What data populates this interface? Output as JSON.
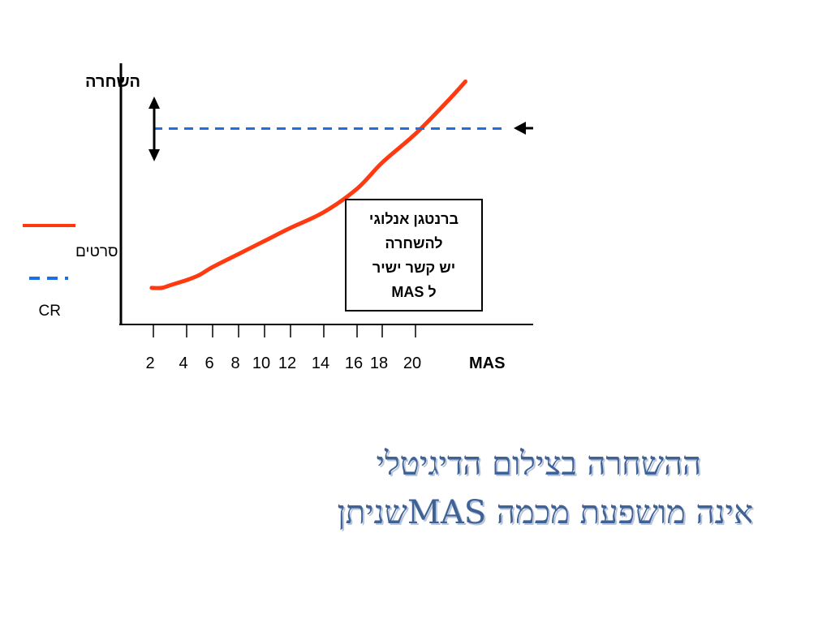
{
  "slide": {
    "title_line1": "ההשחרה בצילום הדיגיטלי",
    "title_line2": "אינה מושפעת מכמה MASשניתן"
  },
  "chart_data": {
    "type": "line",
    "ylabel": "השחרה",
    "xlabel": "MAS",
    "x_ticks": [
      2,
      4,
      6,
      8,
      10,
      12,
      14,
      16,
      18,
      20
    ],
    "y_ticks": [],
    "series": [
      {
        "name": "סרטים",
        "color": "#ff3a10",
        "style": "solid",
        "x": [
          1.9,
          2.5,
          3.0,
          4.0,
          5.0,
          6.0,
          8.0,
          10.0,
          12.0,
          14.0,
          16.0,
          18.0,
          20.0,
          22.0,
          23.0
        ],
        "y": [
          0.14,
          0.14,
          0.15,
          0.17,
          0.19,
          0.22,
          0.27,
          0.32,
          0.37,
          0.43,
          0.52,
          0.62,
          0.73,
          0.86,
          0.93
        ]
      },
      {
        "name": "CR",
        "color": "#1f6fe0",
        "style": "dashed",
        "x": [
          2.0,
          25.5
        ],
        "y": [
          0.75,
          0.75
        ]
      }
    ],
    "annotation": {
      "lines": [
        "ברנטגן אנלוגי",
        "להשחרה",
        "יש קשר ישיר",
        "ל MAS"
      ]
    },
    "legend_position": "left",
    "grid": false
  }
}
